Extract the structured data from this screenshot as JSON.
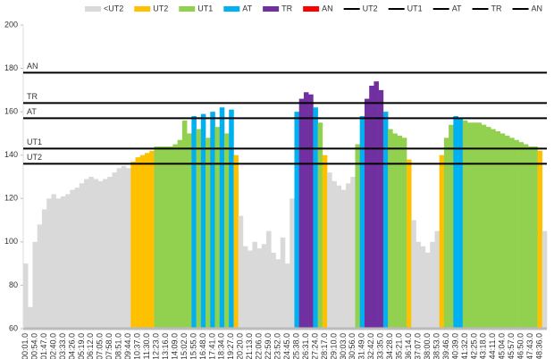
{
  "chart_data": {
    "type": "bar",
    "ylim": [
      60,
      200
    ],
    "yticks": [
      60,
      80,
      100,
      120,
      140,
      160,
      180,
      200
    ],
    "zones": [
      {
        "name": "<UT2",
        "color": "#d9d9d9"
      },
      {
        "name": "UT2",
        "color": "#ffc000"
      },
      {
        "name": "UT1",
        "color": "#92d050"
      },
      {
        "name": "AT",
        "color": "#00b0f0"
      },
      {
        "name": "TR",
        "color": "#7030a0"
      },
      {
        "name": "AN",
        "color": "#ff0000"
      }
    ],
    "lines": [
      {
        "name": "UT2",
        "value": 136,
        "color": "#000000"
      },
      {
        "name": "UT1",
        "value": 143,
        "color": "#000000"
      },
      {
        "name": "AT",
        "value": 157,
        "color": "#000000"
      },
      {
        "name": "TR",
        "value": 164,
        "color": "#000000"
      },
      {
        "name": "AN",
        "value": 178,
        "color": "#000000"
      }
    ],
    "categories": [
      "00:01.0",
      null,
      "00:54.0",
      null,
      "01:47.0",
      null,
      "02:40.0",
      null,
      "03:33.0",
      null,
      "04:26.0",
      null,
      "05:19.0",
      null,
      "06:12.0",
      null,
      "07:05.0",
      null,
      "07:58.0",
      null,
      "08:51.0",
      null,
      "09:44.0",
      null,
      "10:37.0",
      null,
      "11:30.0",
      null,
      "12:23.0",
      null,
      "13:16.0",
      null,
      "14:09.0",
      null,
      "15:02.0",
      null,
      "15:55.0",
      null,
      "16:48.0",
      null,
      "17:41.0",
      null,
      "18:34.0",
      null,
      "19:27.0",
      null,
      "20:20.0",
      null,
      "21:13.0",
      null,
      "22:06.0",
      null,
      "22:59.0",
      null,
      "23:52.0",
      null,
      "24:45.0",
      null,
      "25:38.0",
      null,
      "26:31.0",
      null,
      "27:24.0",
      null,
      "28:17.0",
      null,
      "29:10.0",
      null,
      "30:03.0",
      null,
      "30:56.0",
      null,
      "31:49.0",
      null,
      "32:42.0",
      null,
      "33:35.0",
      null,
      "34:28.0",
      null,
      "35:21.0",
      null,
      "36:14.0",
      null,
      "37:07.0",
      null,
      "38:00.0",
      null,
      "38:53.0",
      null,
      "39:46.0",
      null,
      "40:39.0",
      null,
      "41:32.0",
      null,
      "42:25.0",
      null,
      "43:18.0",
      null,
      "44:11.0",
      null,
      "45:04.0",
      null,
      "45:57.0",
      null,
      "46:50.0",
      null,
      "47:43.0",
      null,
      "48:36.0",
      null
    ],
    "values": [
      90,
      70,
      100,
      108,
      115,
      120,
      122,
      120,
      121,
      122,
      124,
      125,
      127,
      129,
      130,
      129,
      128,
      129,
      130,
      132,
      134,
      135,
      134,
      137,
      139,
      140,
      141,
      142,
      144,
      144,
      144,
      144,
      145,
      147,
      156,
      150,
      158,
      152,
      159,
      148,
      160,
      153,
      162,
      150,
      161,
      140,
      112,
      98,
      96,
      100,
      97,
      99,
      105,
      95,
      92,
      102,
      90,
      120,
      160,
      166,
      169,
      168,
      162,
      155,
      140,
      132,
      128,
      126,
      124,
      127,
      130,
      145,
      158,
      166,
      172,
      174,
      170,
      160,
      152,
      150,
      149,
      148,
      138,
      110,
      100,
      98,
      95,
      100,
      105,
      140,
      148,
      154,
      158,
      157,
      156,
      155,
      155,
      155,
      154,
      153,
      152,
      151,
      150,
      149,
      148,
      147,
      146,
      145,
      144,
      144,
      142,
      105
    ]
  }
}
